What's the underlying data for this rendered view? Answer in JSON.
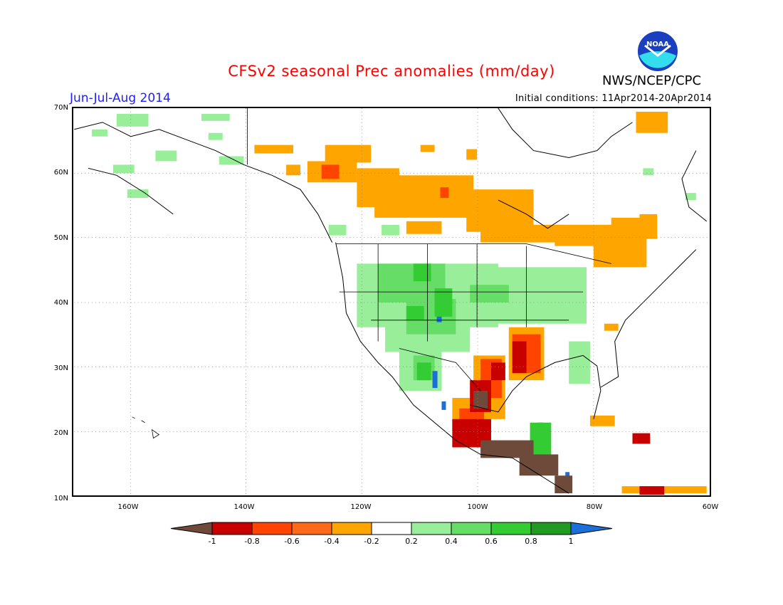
{
  "title": "CFSv2 seasonal Prec anomalies (mm/day)",
  "season": "Jun-Jul-Aug 2014",
  "initial_conditions": "Initial conditions: 11Apr2014-20Apr2014",
  "agency": "NWS/NCEP/CPC",
  "logo_text": "NOAA",
  "colors": {
    "title": "#ff0000",
    "season": "#2020ff",
    "deep_dry": "#6e4a3a",
    "dry_0_8": "#c80000",
    "dry_0_6": "#ff4400",
    "dry_0_4": "#ff6a1a",
    "dry_0_2": "#ffa500",
    "neutral": "#ffffff",
    "wet_0_2": "#99ee99",
    "wet_0_4": "#66dd66",
    "wet_0_6": "#33cc33",
    "wet_0_8": "#229922",
    "wet_1": "#1a6fd8"
  },
  "map": {
    "lat_labels": [
      "70N",
      "60N",
      "50N",
      "40N",
      "30N",
      "20N",
      "10N"
    ],
    "lon_labels": [
      "160W",
      "140W",
      "120W",
      "100W",
      "80W",
      "60W"
    ]
  },
  "colorbar": {
    "labels": [
      "-1",
      "-0.8",
      "-0.6",
      "-0.4",
      "-0.2",
      "0.2",
      "0.4",
      "0.6",
      "0.8",
      "1"
    ],
    "colors": [
      "#c80000",
      "#ff4400",
      "#ff6a1a",
      "#ffa500",
      "#ffffff",
      "#99ee99",
      "#66dd66",
      "#33cc33",
      "#229922"
    ],
    "low_color": "#6e4a3a",
    "high_color": "#1a6fd8"
  }
}
